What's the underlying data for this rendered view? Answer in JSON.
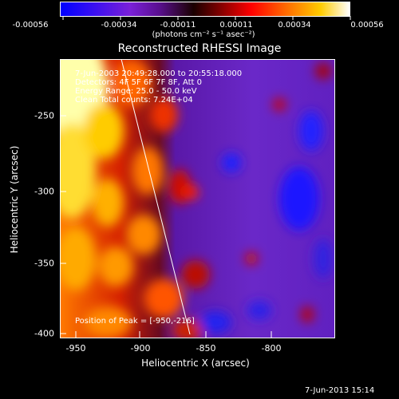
{
  "colorbar": {
    "tick_labels": [
      "-0.00056",
      "-0.00034",
      "-0.00011",
      "0.00011",
      "0.00034",
      "0.00056"
    ],
    "units_label": "(photons cm⁻² s⁻¹ asec⁻²)",
    "colors": [
      "#0000ff",
      "#7a20d8",
      "#1a0000",
      "#ff0000",
      "#ff9900",
      "#ffffff"
    ]
  },
  "plot": {
    "title": "Reconstructed RHESSI Image",
    "annotations": [
      "7-Jun-2003 20:49:28.000 to 20:55:18.000",
      "Detectors: 4F 5F 6F 7F 8F, Att 0",
      "Energy Range: 25.0 - 50.0 keV",
      "Clean    Total counts: 7.24E+04"
    ],
    "peak_label": "Position of Peak = [-950,-216]",
    "x_title": "Heliocentric X (arcsec)",
    "y_title": "Heliocentric Y (arcsec)",
    "x_ticks": [
      "-950",
      "-900",
      "-850",
      "-800"
    ],
    "y_ticks": [
      "-250",
      "-300",
      "-350",
      "-400"
    ],
    "timestamp": "7-Jun-2013 15:14"
  }
}
